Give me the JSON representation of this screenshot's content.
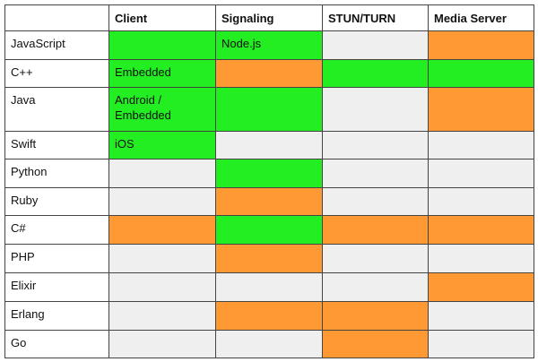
{
  "table": {
    "header": [
      "Client",
      "Signaling",
      "STUN/TURN",
      "Media Server"
    ],
    "rows": [
      {
        "label": "JavaScript",
        "cells": [
          {
            "color": "#22ee22"
          },
          {
            "text": "Node.js",
            "color": "#22ee22"
          },
          {
            "color": "#efefef"
          },
          {
            "color": "#ff9933"
          }
        ]
      },
      {
        "label": "C++",
        "cells": [
          {
            "text": "Embedded",
            "color": "#22ee22"
          },
          {
            "color": "#ff9933"
          },
          {
            "color": "#22ee22"
          },
          {
            "color": "#22ee22"
          }
        ]
      },
      {
        "label": "Java",
        "cells": [
          {
            "text": "Android / Embedded",
            "color": "#22ee22"
          },
          {
            "color": "#22ee22"
          },
          {
            "color": "#efefef"
          },
          {
            "color": "#ff9933"
          }
        ]
      },
      {
        "label": "Swift",
        "cells": [
          {
            "text": "iOS",
            "color": "#22ee22"
          },
          {
            "color": "#efefef"
          },
          {
            "color": "#efefef"
          },
          {
            "color": "#efefef"
          }
        ]
      },
      {
        "label": "Python",
        "cells": [
          {
            "color": "#efefef"
          },
          {
            "color": "#22ee22"
          },
          {
            "color": "#efefef"
          },
          {
            "color": "#efefef"
          }
        ]
      },
      {
        "label": "Ruby",
        "cells": [
          {
            "color": "#efefef"
          },
          {
            "color": "#ff9933"
          },
          {
            "color": "#efefef"
          },
          {
            "color": "#efefef"
          }
        ]
      },
      {
        "label": "C#",
        "cells": [
          {
            "color": "#ff9933"
          },
          {
            "color": "#22ee22"
          },
          {
            "color": "#ff9933"
          },
          {
            "color": "#ff9933"
          }
        ]
      },
      {
        "label": "PHP",
        "cells": [
          {
            "color": "#efefef"
          },
          {
            "color": "#ff9933"
          },
          {
            "color": "#efefef"
          },
          {
            "color": "#efefef"
          }
        ]
      },
      {
        "label": "Elixir",
        "cells": [
          {
            "color": "#efefef"
          },
          {
            "color": "#efefef"
          },
          {
            "color": "#efefef"
          },
          {
            "color": "#ff9933"
          }
        ]
      },
      {
        "label": "Erlang",
        "cells": [
          {
            "color": "#efefef"
          },
          {
            "color": "#ff9933"
          },
          {
            "color": "#ff9933"
          },
          {
            "color": "#efefef"
          }
        ]
      },
      {
        "label": "Go",
        "cells": [
          {
            "color": "#efefef"
          },
          {
            "color": "#efefef"
          },
          {
            "color": "#ff9933"
          },
          {
            "color": "#efefef"
          }
        ]
      }
    ]
  }
}
